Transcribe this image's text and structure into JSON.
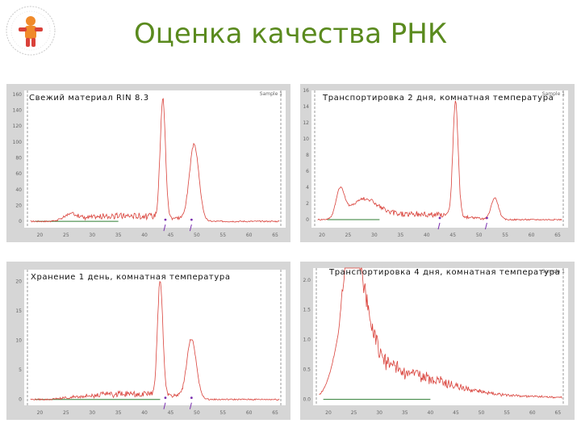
{
  "title": "Оценка качества РНК",
  "colors": {
    "title": "#5a8a1e",
    "trace": "#d9413a",
    "baseline": "#2e7d32",
    "marker": "#7a2fb0",
    "panel_bg": "#d6d6d6",
    "plot_bg": "#ffffff"
  },
  "logo": {
    "icon": "child-figure-logo"
  },
  "chart_data": [
    {
      "type": "line",
      "title": "Свежий материал RIN 8.3",
      "corner_label": "Sample 1",
      "x_ticks": [
        "20",
        "25",
        "30",
        "35",
        "40",
        "45",
        "50",
        "55",
        "60",
        "65"
      ],
      "y_ticks": [
        "0",
        "20",
        "40",
        "60",
        "80",
        "100",
        "120",
        "140",
        "160"
      ],
      "xlim": [
        17,
        67
      ],
      "ylim": [
        -8,
        165
      ],
      "baseline": [
        19,
        35
      ],
      "peaks": [
        {
          "x": 26,
          "y": 7,
          "w": 1.2
        },
        {
          "x": 43.5,
          "y": 150,
          "w": 0.5
        },
        {
          "x": 49.5,
          "y": 95,
          "w": 0.9
        }
      ],
      "marker_x": [
        44,
        49
      ]
    },
    {
      "type": "line",
      "title": "Транспортировка 2 дня, комнатная температура",
      "corner_label": "Sample 1",
      "x_ticks": [
        "20",
        "25",
        "30",
        "35",
        "40",
        "45",
        "50",
        "55",
        "60",
        "65"
      ],
      "y_ticks": [
        "0",
        "2",
        "4",
        "6",
        "8",
        "10",
        "12",
        "14",
        "16"
      ],
      "xlim": [
        18,
        67
      ],
      "ylim": [
        -1,
        16
      ],
      "baseline": [
        21,
        31
      ],
      "peaks": [
        {
          "x": 23.5,
          "y": 3.5,
          "w": 0.8
        },
        {
          "x": 28,
          "y": 2.2,
          "w": 2.5
        },
        {
          "x": 45.5,
          "y": 14.2,
          "w": 0.5
        },
        {
          "x": 53,
          "y": 2.7,
          "w": 0.7
        }
      ],
      "marker_x": [
        42.5,
        51.5
      ]
    },
    {
      "type": "line",
      "title": "Хранение 1 день, комнатная температура",
      "corner_label": "",
      "x_ticks": [
        "20",
        "25",
        "30",
        "35",
        "40",
        "45",
        "50",
        "55",
        "60",
        "65"
      ],
      "y_ticks": [
        "0",
        "5",
        "10",
        "15",
        "20"
      ],
      "xlim": [
        17,
        67
      ],
      "ylim": [
        -1,
        22
      ],
      "baseline": [
        19,
        43
      ],
      "peaks": [
        {
          "x": 43,
          "y": 19.5,
          "w": 0.5
        },
        {
          "x": 49,
          "y": 10,
          "w": 0.9
        }
      ],
      "marker_x": [
        44,
        49
      ]
    },
    {
      "type": "line",
      "title": "Транспортировка 4 дня, комнатная температура",
      "corner_label": "Sample 1",
      "x_ticks": [
        "20",
        "25",
        "30",
        "35",
        "40",
        "45",
        "50",
        "55",
        "60",
        "65"
      ],
      "y_ticks": [
        "0.0",
        "0.5",
        "1.0",
        "1.5",
        "2.0"
      ],
      "xlim": [
        17,
        67
      ],
      "ylim": [
        -0.1,
        2.2
      ],
      "baseline": [
        19,
        40
      ],
      "peaks": [
        {
          "x": 24.5,
          "y": 1.85,
          "w": 2.5
        }
      ],
      "marker_x": []
    }
  ]
}
